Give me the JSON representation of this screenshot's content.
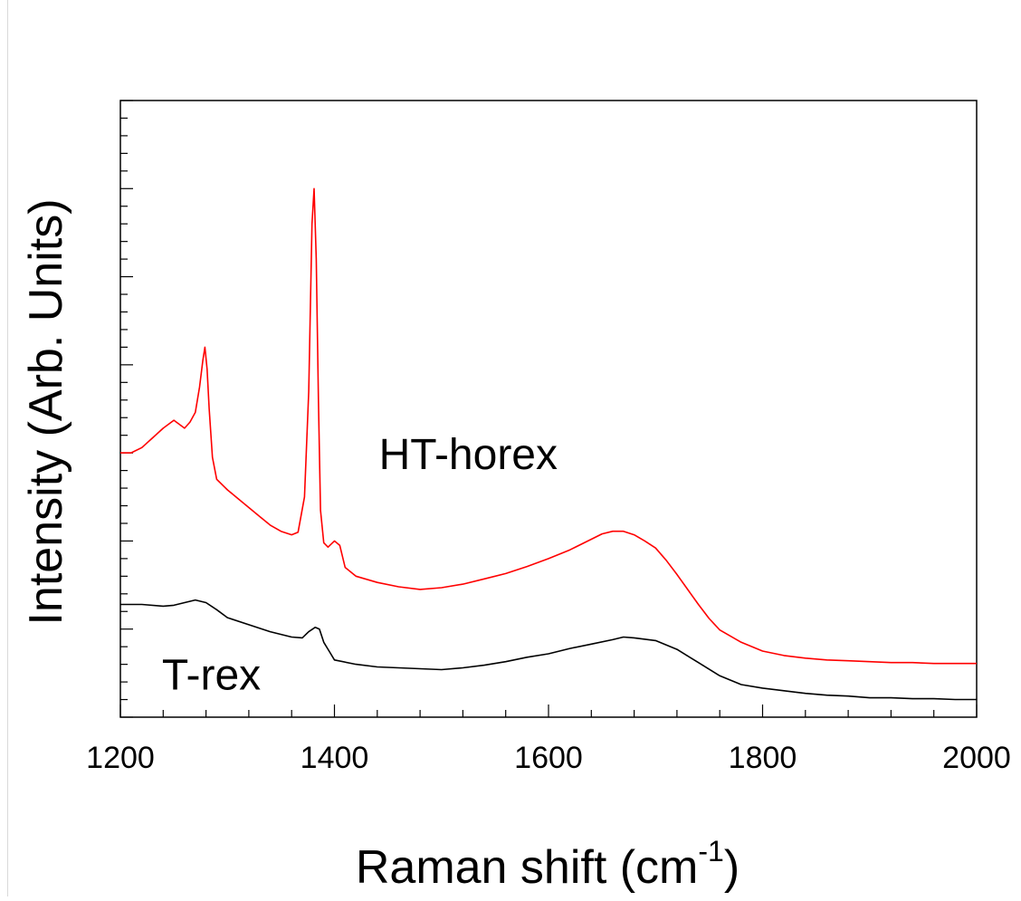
{
  "chart_data": {
    "type": "line",
    "title": "",
    "xlabel": "Raman shift (cm",
    "xlabel_superscript": "-1",
    "xlabel_suffix": ")",
    "ylabel": "Intensity (Arb. Units)",
    "xlim": [
      1200,
      2000
    ],
    "ylim": [
      0,
      7
    ],
    "x_ticks": [
      1200,
      1400,
      1600,
      1800,
      2000
    ],
    "x_tick_labels": [
      "1200",
      "1400",
      "1600",
      "1800",
      "2000"
    ],
    "y_tick_labels_shown": false,
    "grid": false,
    "series": [
      {
        "name": "HT-horex",
        "color": "#ff0000",
        "x": [
          1200,
          1210,
          1220,
          1230,
          1240,
          1250,
          1260,
          1265,
          1270,
          1274,
          1277,
          1279,
          1281,
          1283,
          1286,
          1290,
          1300,
          1310,
          1320,
          1330,
          1340,
          1350,
          1360,
          1366,
          1372,
          1376,
          1379,
          1381,
          1383,
          1385,
          1387,
          1390,
          1394,
          1400,
          1405,
          1410,
          1420,
          1440,
          1460,
          1480,
          1500,
          1520,
          1540,
          1560,
          1580,
          1600,
          1620,
          1640,
          1650,
          1660,
          1670,
          1680,
          1690,
          1700,
          1710,
          1720,
          1730,
          1740,
          1750,
          1760,
          1780,
          1800,
          1820,
          1840,
          1860,
          1880,
          1900,
          1920,
          1940,
          1960,
          1980,
          2000
        ],
        "y": [
          3.0,
          3.0,
          3.06,
          3.17,
          3.28,
          3.37,
          3.28,
          3.35,
          3.46,
          3.75,
          4.05,
          4.2,
          3.95,
          3.5,
          2.95,
          2.7,
          2.58,
          2.48,
          2.38,
          2.28,
          2.18,
          2.11,
          2.07,
          2.1,
          2.5,
          3.7,
          5.6,
          6.0,
          5.2,
          3.6,
          2.35,
          1.98,
          1.93,
          2.0,
          1.95,
          1.7,
          1.6,
          1.53,
          1.48,
          1.45,
          1.47,
          1.51,
          1.57,
          1.63,
          1.71,
          1.8,
          1.9,
          2.02,
          2.08,
          2.11,
          2.11,
          2.07,
          2.0,
          1.92,
          1.78,
          1.62,
          1.45,
          1.28,
          1.12,
          0.99,
          0.85,
          0.75,
          0.7,
          0.67,
          0.65,
          0.64,
          0.63,
          0.62,
          0.62,
          0.61,
          0.61,
          0.61
        ]
      },
      {
        "name": "T-rex",
        "color": "#000000",
        "x": [
          1200,
          1220,
          1240,
          1250,
          1260,
          1270,
          1280,
          1290,
          1300,
          1320,
          1340,
          1360,
          1370,
          1376,
          1382,
          1386,
          1390,
          1395,
          1400,
          1420,
          1440,
          1460,
          1480,
          1500,
          1520,
          1540,
          1560,
          1580,
          1600,
          1620,
          1640,
          1660,
          1670,
          1680,
          1700,
          1720,
          1740,
          1760,
          1780,
          1800,
          1820,
          1840,
          1860,
          1880,
          1900,
          1920,
          1940,
          1960,
          1980,
          2000
        ],
        "y": [
          1.28,
          1.28,
          1.26,
          1.27,
          1.3,
          1.33,
          1.3,
          1.22,
          1.13,
          1.05,
          0.97,
          0.91,
          0.9,
          0.97,
          1.02,
          1.0,
          0.85,
          0.75,
          0.65,
          0.6,
          0.57,
          0.56,
          0.55,
          0.54,
          0.56,
          0.59,
          0.63,
          0.68,
          0.72,
          0.78,
          0.83,
          0.88,
          0.91,
          0.9,
          0.87,
          0.77,
          0.62,
          0.47,
          0.37,
          0.33,
          0.3,
          0.27,
          0.25,
          0.24,
          0.22,
          0.22,
          0.21,
          0.21,
          0.2,
          0.2
        ]
      }
    ],
    "annotations": [
      {
        "text": "HT-horex",
        "x": 1525,
        "y": 3.0
      },
      {
        "text": "T-rex",
        "x": 1285,
        "y": 0.5
      }
    ]
  }
}
